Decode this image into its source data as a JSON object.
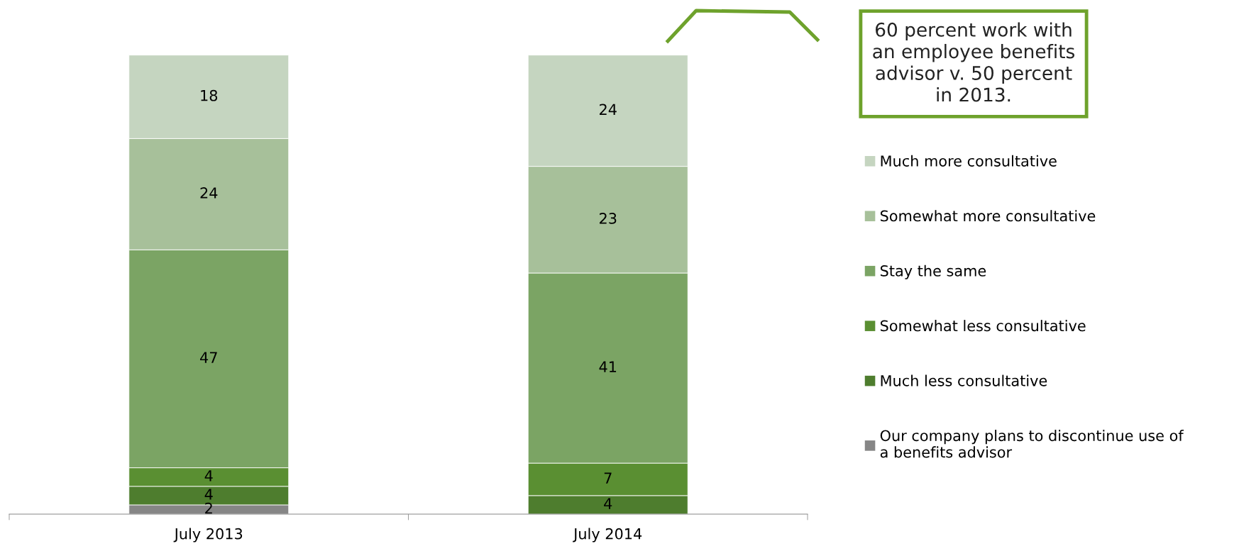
{
  "chart_data": {
    "type": "bar",
    "stacked": true,
    "data_labels": true,
    "legend": "right",
    "categories": [
      "July 2013",
      "July 2014"
    ],
    "series": [
      {
        "name": "Our company plans to discontinue use of a benefits advisor",
        "color": "#868686",
        "values": [
          2,
          null
        ]
      },
      {
        "name": "Much less consultative",
        "color": "#4e7d2e",
        "values": [
          4,
          4
        ]
      },
      {
        "name": "Somewhat less consultative",
        "color": "#5a8f32",
        "values": [
          4,
          7
        ]
      },
      {
        "name": "Stay the same",
        "color": "#7ba464",
        "values": [
          47,
          41
        ]
      },
      {
        "name": "Somewhat more consultative",
        "color": "#a7c09a",
        "values": [
          24,
          23
        ]
      },
      {
        "name": "Much more consultative",
        "color": "#c5d5c0",
        "values": [
          18,
          24
        ]
      }
    ],
    "annotations": [
      "60 percent work with an employee benefits advisor v. 50 percent in 2013."
    ]
  }
}
